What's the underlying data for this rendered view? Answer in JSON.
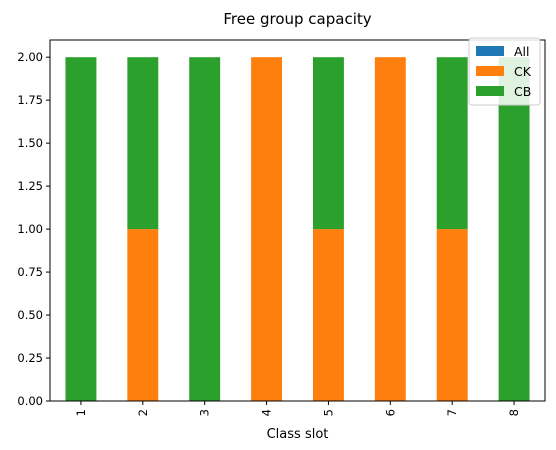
{
  "chart_data": {
    "type": "bar",
    "stacked": true,
    "title": "Free group capacity",
    "xlabel": "Class slot",
    "ylabel": "",
    "categories": [
      "1",
      "2",
      "3",
      "4",
      "5",
      "6",
      "7",
      "8"
    ],
    "series": [
      {
        "name": "All",
        "color": "#1f77b4",
        "values": [
          0,
          0,
          0,
          0,
          0,
          0,
          0,
          0
        ]
      },
      {
        "name": "CK",
        "color": "#ff7f0e",
        "values": [
          0,
          1,
          0,
          2,
          1,
          2,
          1,
          0
        ]
      },
      {
        "name": "CB",
        "color": "#2ca02c",
        "values": [
          2,
          1,
          2,
          0,
          1,
          0,
          1,
          2
        ]
      }
    ],
    "ylim": [
      0,
      2.1
    ],
    "yticks": [
      "0.00",
      "0.25",
      "0.50",
      "0.75",
      "1.00",
      "1.25",
      "1.50",
      "1.75",
      "2.00"
    ],
    "grid": false,
    "legend_position": "top-right"
  }
}
